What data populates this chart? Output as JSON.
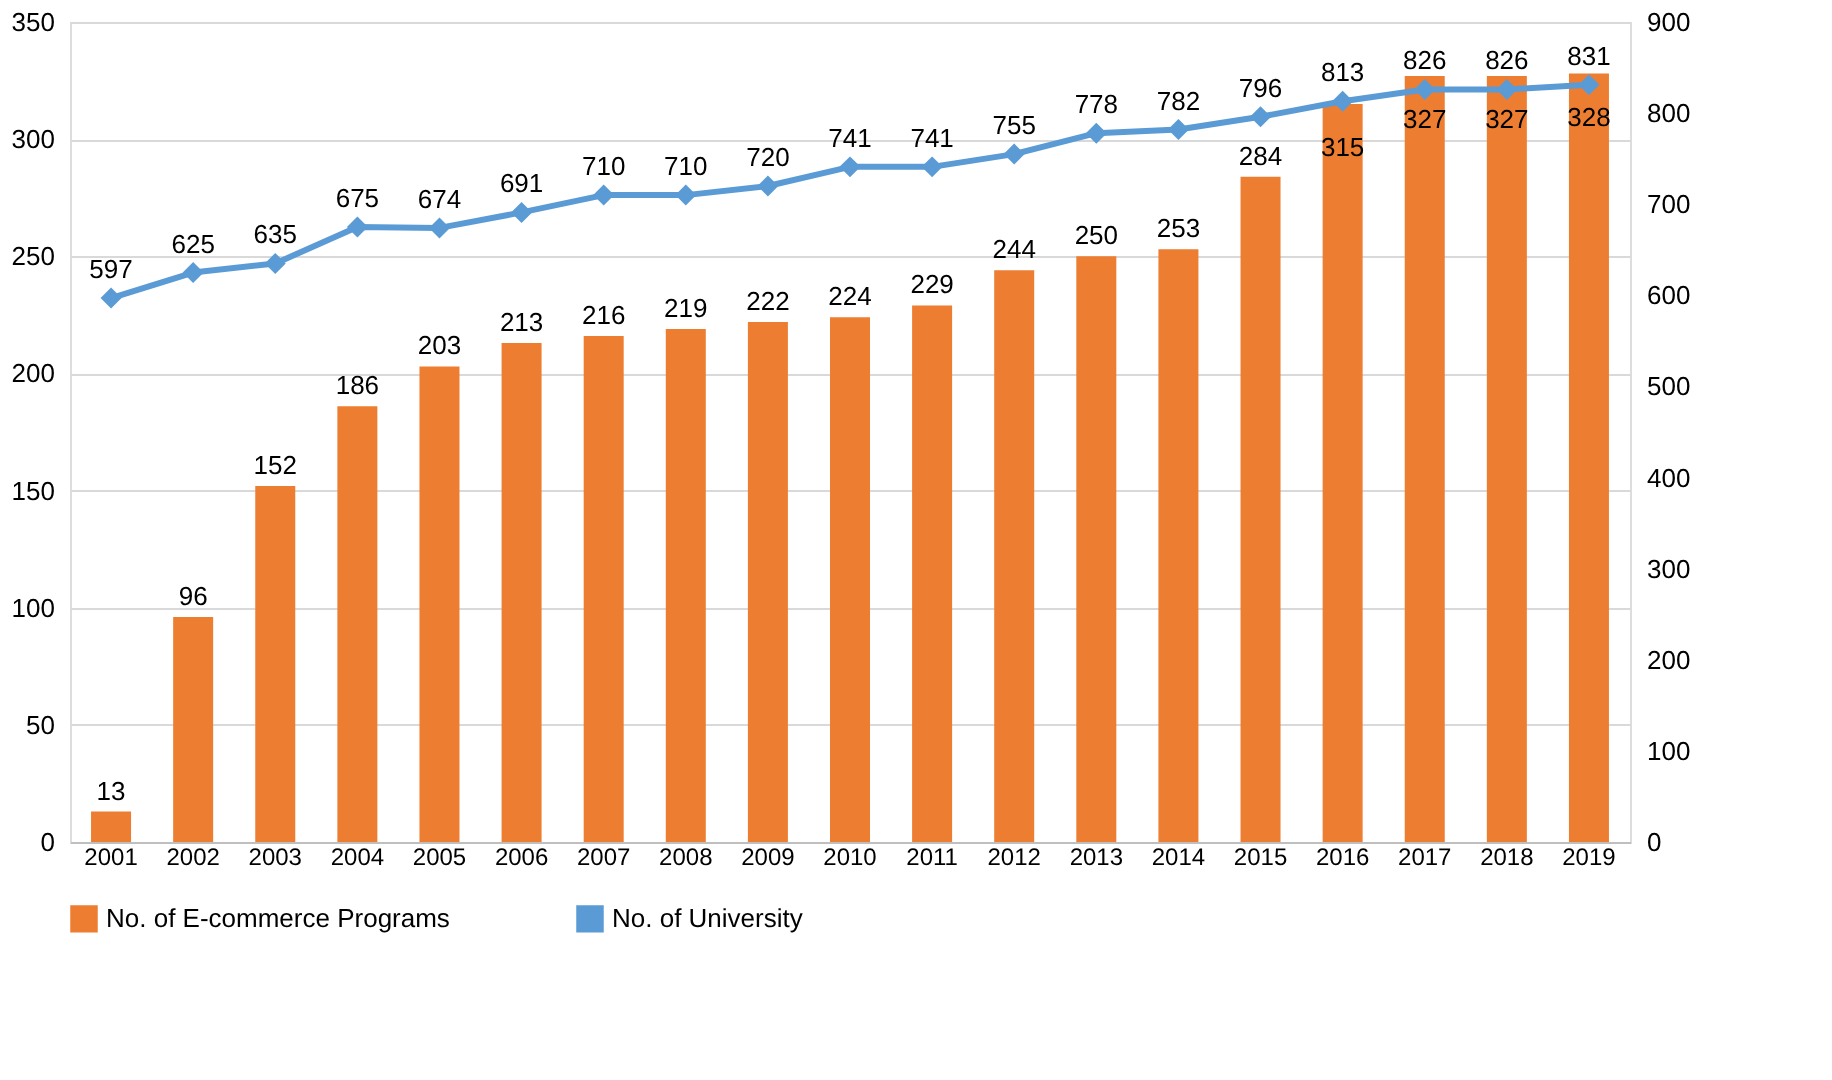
{
  "chart_data": {
    "type": "bar",
    "categories": [
      "2001",
      "2002",
      "2003",
      "2004",
      "2005",
      "2006",
      "2007",
      "2008",
      "2009",
      "2010",
      "2011",
      "2012",
      "2013",
      "2014",
      "2015",
      "2016",
      "2017",
      "2018",
      "2019"
    ],
    "series": [
      {
        "name": "No. of E-commerce Programs",
        "color": "#ed7d31",
        "values": [
          13,
          96,
          152,
          186,
          203,
          213,
          216,
          219,
          222,
          224,
          229,
          244,
          250,
          253,
          284,
          315,
          327,
          327,
          328
        ]
      },
      {
        "name": "No. of University",
        "type": "line",
        "axis": "y2",
        "color": "#5b9bd5",
        "marker": "diamond",
        "values": [
          597,
          625,
          635,
          675,
          674,
          691,
          710,
          710,
          720,
          741,
          741,
          755,
          778,
          782,
          796,
          813,
          826,
          826,
          831
        ]
      }
    ],
    "ylim": [
      0,
      350
    ],
    "yticks": [
      0,
      50,
      100,
      150,
      200,
      250,
      300,
      350
    ],
    "y2lim": [
      0,
      900
    ],
    "y2ticks": [
      0,
      100,
      200,
      300,
      400,
      500,
      600,
      700,
      800,
      900
    ],
    "grid": "y",
    "legend": "bottom",
    "data_labels": true
  }
}
